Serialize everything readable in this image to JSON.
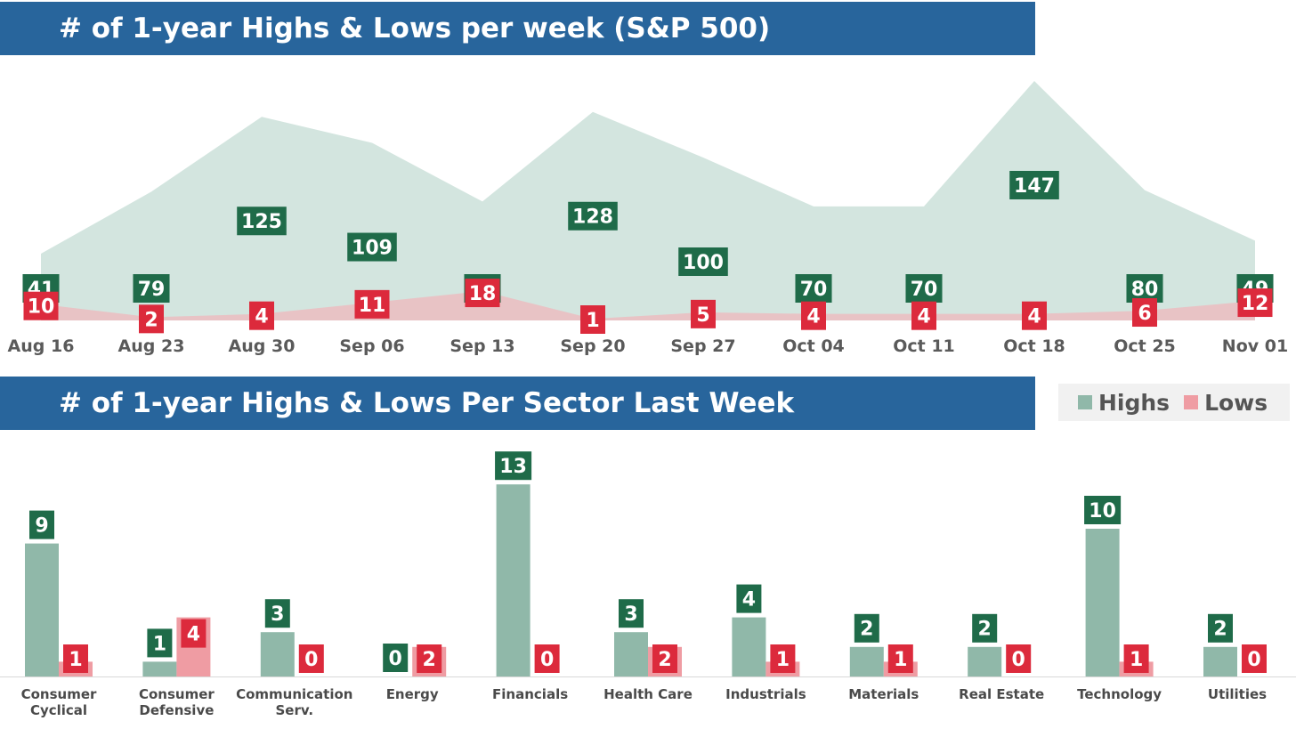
{
  "colors": {
    "banner": "#28659c",
    "highs_area": "#d3e5df",
    "lows_area": "#e8c3c5",
    "highs_bar": "#90b8a9",
    "lows_bar": "#ef9ca3",
    "highs_label": "#1f6b49",
    "lows_label": "#dc2a3c"
  },
  "legend": {
    "highs": "Highs",
    "lows": "Lows"
  },
  "chart_data": [
    {
      "type": "area",
      "title": "# of 1-year Highs & Lows per week (S&P 500)",
      "categories": [
        "Aug 16",
        "Aug 23",
        "Aug 30",
        "Sep 06",
        "Sep 13",
        "Sep 20",
        "Sep 27",
        "Oct 04",
        "Oct 11",
        "Oct 18",
        "Oct 25",
        "Nov 01"
      ],
      "series": [
        {
          "name": "Highs",
          "values": [
            41,
            79,
            125,
            109,
            73,
            128,
            100,
            70,
            70,
            147,
            80,
            49
          ]
        },
        {
          "name": "Lows",
          "values": [
            10,
            2,
            4,
            11,
            18,
            1,
            5,
            4,
            4,
            4,
            6,
            12
          ]
        }
      ]
    },
    {
      "type": "bar",
      "title": "# of 1-year Highs & Lows Per Sector Last Week",
      "categories": [
        [
          "Consumer",
          "Cyclical"
        ],
        [
          "Consumer",
          "Defensive"
        ],
        [
          "Communication",
          "Serv."
        ],
        [
          "Energy"
        ],
        [
          "Financials"
        ],
        [
          "Health Care"
        ],
        [
          "Industrials"
        ],
        [
          "Materials"
        ],
        [
          "Real Estate"
        ],
        [
          "Technology"
        ],
        [
          "Utilities"
        ]
      ],
      "series": [
        {
          "name": "Highs",
          "values": [
            9,
            1,
            3,
            0,
            13,
            3,
            4,
            2,
            2,
            10,
            2
          ]
        },
        {
          "name": "Lows",
          "values": [
            1,
            4,
            0,
            2,
            0,
            2,
            1,
            1,
            0,
            1,
            0
          ]
        }
      ]
    }
  ]
}
